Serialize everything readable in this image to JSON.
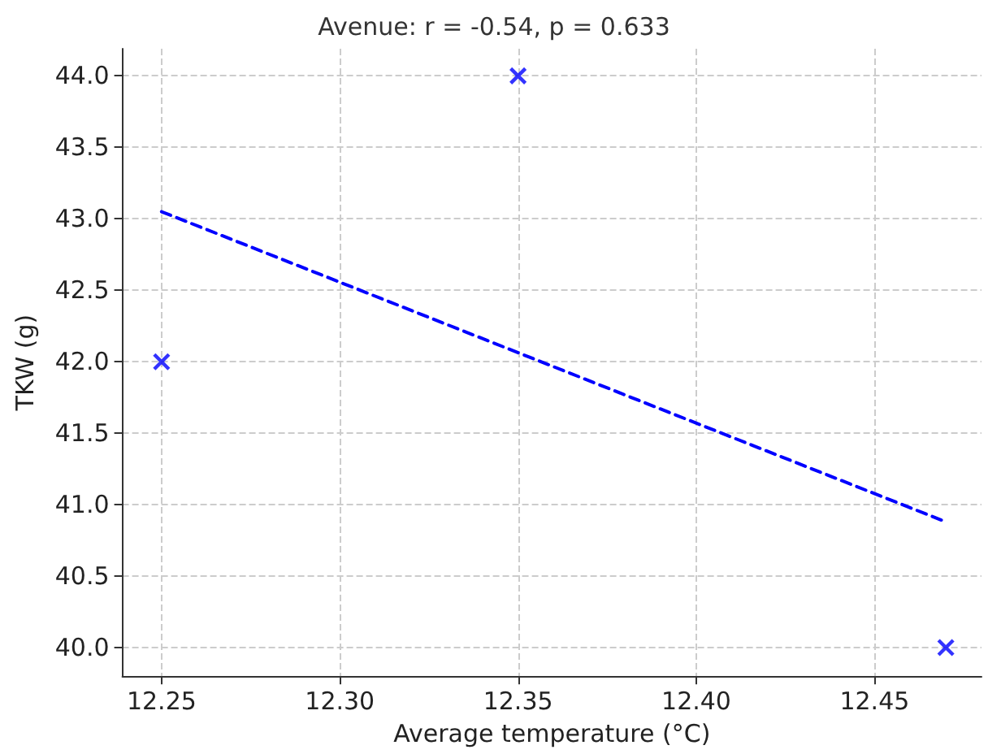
{
  "chart_data": {
    "type": "scatter",
    "title": "Avenue: r = -0.54, p = 0.633",
    "xlabel": "Average temperature (°C)",
    "ylabel": "TKW (g)",
    "xlim": [
      12.239,
      12.48
    ],
    "ylim": [
      39.8,
      44.19
    ],
    "xticks": [
      {
        "value": 12.25,
        "label": "12.25"
      },
      {
        "value": 12.3,
        "label": "12.30"
      },
      {
        "value": 12.35,
        "label": "12.35"
      },
      {
        "value": 12.4,
        "label": "12.40"
      },
      {
        "value": 12.45,
        "label": "12.45"
      }
    ],
    "yticks": [
      {
        "value": 40,
        "label": "40.0"
      },
      {
        "value": 40.5,
        "label": "40.5"
      },
      {
        "value": 41,
        "label": "41.0"
      },
      {
        "value": 41.5,
        "label": "41.5"
      },
      {
        "value": 42,
        "label": "42.0"
      },
      {
        "value": 42.5,
        "label": "42.5"
      },
      {
        "value": 43,
        "label": "43.0"
      },
      {
        "value": 43.5,
        "label": "43.5"
      },
      {
        "value": 44,
        "label": "44.0"
      }
    ],
    "grid": true,
    "marker": "cross",
    "series": [
      {
        "color": "#0000ff",
        "x": [
          12.25,
          12.35,
          12.47
        ],
        "values": [
          42,
          44,
          40
        ]
      },
      {
        "type": "line",
        "color": "#0000ff",
        "line_style": "dashed",
        "marker": "none",
        "x": [
          12.25,
          12.47
        ],
        "values": [
          43.05,
          40.88
        ]
      }
    ]
  }
}
